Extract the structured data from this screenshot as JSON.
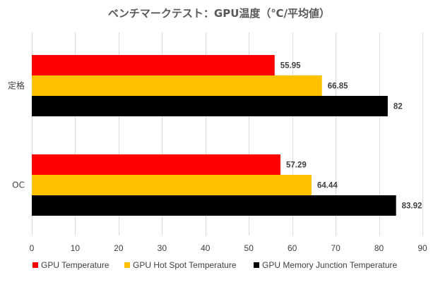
{
  "chart_data": {
    "type": "bar",
    "orientation": "horizontal",
    "title": "ベンチマークテスト：GPU温度（℃/平均値）",
    "categories": [
      "定格",
      "OC"
    ],
    "series": [
      {
        "name": "GPU Temperature",
        "color": "#ff0000",
        "values": [
          55.95,
          57.29
        ]
      },
      {
        "name": "GPU Hot Spot Temperature",
        "color": "#ffc000",
        "values": [
          66.85,
          64.44
        ]
      },
      {
        "name": "GPU Memory Junction Temperature",
        "color": "#000000",
        "values": [
          82,
          83.92
        ]
      }
    ],
    "xlim": [
      0,
      90
    ],
    "xticks": [
      0,
      10,
      20,
      30,
      40,
      50,
      60,
      70,
      80,
      90
    ],
    "grid": true,
    "legend_position": "bottom"
  }
}
